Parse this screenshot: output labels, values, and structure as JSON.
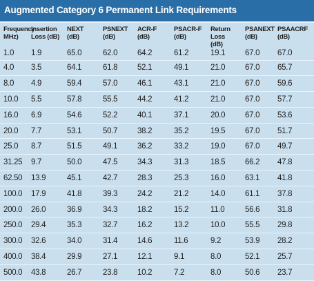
{
  "title": "Augmented Category 6 Permanent Link Requirements",
  "headers": [
    {
      "line1": "Frequency",
      "line2": "MHz)"
    },
    {
      "line1": "Insertion",
      "line2": "Loss (dB)"
    },
    {
      "line1": "NEXT",
      "line2": "(dB)"
    },
    {
      "line1": "PSNEXT",
      "line2": "(dB)"
    },
    {
      "line1": "ACR-F",
      "line2": "(dB)"
    },
    {
      "line1": "PSACR-F",
      "line2": "(dB)"
    },
    {
      "line1": "Return Loss",
      "line2": "(dB)"
    },
    {
      "line1": "PSANEXT",
      "line2": "(dB)"
    },
    {
      "line1": "PSAACRF",
      "line2": "(dB)"
    }
  ],
  "rows": [
    [
      "1.0",
      "1.9",
      "65.0",
      "62.0",
      "64.2",
      "61.2",
      "19.1",
      "67.0",
      "67.0"
    ],
    [
      "4.0",
      "3.5",
      "64.1",
      "61.8",
      "52.1",
      "49.1",
      "21.0",
      "67.0",
      "65.7"
    ],
    [
      "8.0",
      "4.9",
      "59.4",
      "57.0",
      "46.1",
      "43.1",
      "21.0",
      "67.0",
      "59.6"
    ],
    [
      "10.0",
      "5.5",
      "57.8",
      "55.5",
      "44.2",
      "41.2",
      "21.0",
      "67.0",
      "57.7"
    ],
    [
      "16.0",
      "6.9",
      "54.6",
      "52.2",
      "40.1",
      "37.1",
      "20.0",
      "67.0",
      "53.6"
    ],
    [
      "20.0",
      "7.7",
      "53.1",
      "50.7",
      "38.2",
      "35.2",
      "19.5",
      "67.0",
      "51.7"
    ],
    [
      "25.0",
      "8.7",
      "51.5",
      "49.1",
      "36.2",
      "33.2",
      "19.0",
      "67.0",
      "49.7"
    ],
    [
      "31.25",
      "9.7",
      "50.0",
      "47.5",
      "34.3",
      "31.3",
      "18.5",
      "66.2",
      "47.8"
    ],
    [
      "62.50",
      "13.9",
      "45.1",
      "42.7",
      "28.3",
      "25.3",
      "16.0",
      "63.1",
      "41.8"
    ],
    [
      "100.0",
      "17.9",
      "41.8",
      "39.3",
      "24.2",
      "21.2",
      "14.0",
      "61.1",
      "37.8"
    ],
    [
      "200.0",
      "26.0",
      "36.9",
      "34.3",
      "18.2",
      "15.2",
      "11.0",
      "56.6",
      "31.8"
    ],
    [
      "250.0",
      "29.4",
      "35.3",
      "32.7",
      "16.2",
      "13.2",
      "10.0",
      "55.5",
      "29.8"
    ],
    [
      "300.0",
      "32.6",
      "34.0",
      "31.4",
      "14.6",
      "11.6",
      "9.2",
      "53.9",
      "28.2"
    ],
    [
      "400.0",
      "38.4",
      "29.9",
      "27.1",
      "12.1",
      "9.1",
      "8.0",
      "52.1",
      "25.7"
    ],
    [
      "500.0",
      "43.8",
      "26.7",
      "23.8",
      "10.2",
      "7.2",
      "8.0",
      "50.6",
      "23.7"
    ]
  ],
  "colors": {
    "title_bar": "#2a6ea8",
    "background": "#c9dfee",
    "rule": "#eaf3fa",
    "text": "#1f1f1f"
  }
}
